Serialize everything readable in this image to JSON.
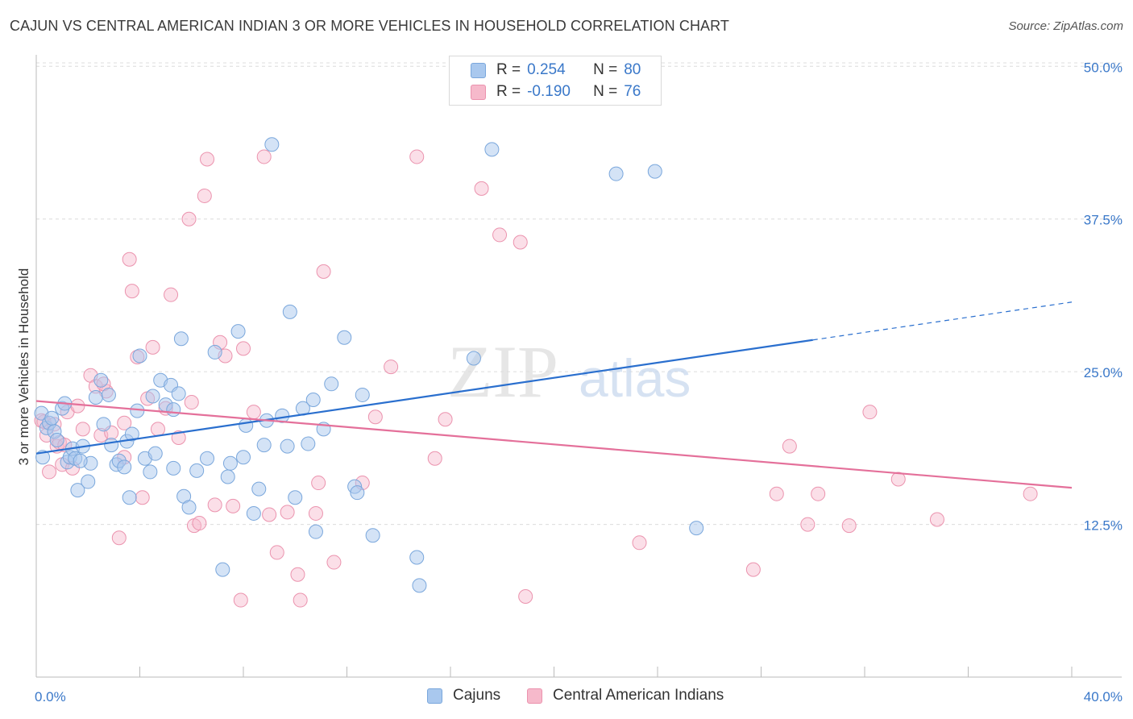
{
  "header": {
    "title": "CAJUN VS CENTRAL AMERICAN INDIAN 3 OR MORE VEHICLES IN HOUSEHOLD CORRELATION CHART",
    "source": "Source: ZipAtlas.com"
  },
  "watermark": {
    "zip": "ZIP",
    "atlas": "atlas"
  },
  "colors": {
    "blue_fill": "#a9c8ee",
    "blue_stroke": "#7aa7dc",
    "blue_line": "#2a6fce",
    "blue_text": "#3a78c9",
    "pink_fill": "#f6b9cb",
    "pink_stroke": "#eb93ae",
    "pink_line": "#e4709a",
    "grid": "#dcdcdc"
  },
  "legend": {
    "rows": [
      {
        "r_label": "R =",
        "r_value": "0.254",
        "n_label": "N =",
        "n_value": "80"
      },
      {
        "r_label": "R =",
        "r_value": "-0.190",
        "n_label": "N =",
        "n_value": "76"
      }
    ]
  },
  "bottom_legend": {
    "items": [
      "Cajuns",
      "Central American Indians"
    ]
  },
  "chart_data": {
    "type": "scatter",
    "title": "CAJUN VS CENTRAL AMERICAN INDIAN 3 OR MORE VEHICLES IN HOUSEHOLD CORRELATION CHART",
    "xlabel": "",
    "ylabel": "3 or more Vehicles in Household",
    "xlim": [
      0,
      40
    ],
    "ylim": [
      0,
      52
    ],
    "x_tick_labels": [
      "0.0%",
      "40.0%"
    ],
    "y_ticks": [
      12.5,
      25.0,
      37.5,
      50.0
    ],
    "y_tick_labels": [
      "12.5%",
      "25.0%",
      "37.5%",
      "50.0%"
    ],
    "grid": true,
    "legend_position": "top-center",
    "series": [
      {
        "name": "Cajuns",
        "r": 0.254,
        "n": 80,
        "trend": {
          "x0": 0,
          "y0": 18.3,
          "x1": 30,
          "y1": 27.6,
          "dash_to_x": 40,
          "dash_to_y": 30.7
        },
        "points": [
          [
            0.2,
            21.6
          ],
          [
            0.4,
            20.4
          ],
          [
            0.5,
            20.8
          ],
          [
            0.6,
            21.2
          ],
          [
            0.7,
            20.1
          ],
          [
            0.8,
            19.4
          ],
          [
            1.0,
            22.0
          ],
          [
            1.1,
            22.4
          ],
          [
            1.2,
            17.6
          ],
          [
            1.3,
            18.0
          ],
          [
            1.4,
            18.7
          ],
          [
            1.5,
            17.9
          ],
          [
            1.6,
            15.3
          ],
          [
            1.8,
            18.9
          ],
          [
            2.0,
            16.0
          ],
          [
            2.1,
            17.5
          ],
          [
            2.3,
            22.9
          ],
          [
            2.5,
            24.3
          ],
          [
            2.6,
            20.7
          ],
          [
            2.8,
            23.1
          ],
          [
            2.9,
            19.0
          ],
          [
            3.1,
            17.4
          ],
          [
            3.2,
            17.7
          ],
          [
            3.4,
            17.2
          ],
          [
            3.5,
            19.3
          ],
          [
            3.6,
            14.7
          ],
          [
            3.7,
            19.9
          ],
          [
            3.9,
            21.8
          ],
          [
            4.0,
            26.3
          ],
          [
            4.2,
            17.9
          ],
          [
            4.4,
            16.8
          ],
          [
            4.5,
            23.0
          ],
          [
            4.6,
            18.3
          ],
          [
            4.8,
            24.3
          ],
          [
            5.0,
            22.3
          ],
          [
            5.2,
            23.9
          ],
          [
            5.3,
            17.1
          ],
          [
            5.5,
            23.2
          ],
          [
            5.6,
            27.7
          ],
          [
            5.7,
            14.8
          ],
          [
            5.9,
            13.9
          ],
          [
            6.2,
            16.9
          ],
          [
            6.6,
            17.9
          ],
          [
            6.9,
            26.6
          ],
          [
            7.2,
            8.8
          ],
          [
            7.4,
            16.4
          ],
          [
            7.5,
            17.5
          ],
          [
            7.8,
            28.3
          ],
          [
            8.0,
            18.0
          ],
          [
            8.1,
            20.6
          ],
          [
            8.4,
            13.4
          ],
          [
            8.6,
            15.4
          ],
          [
            8.8,
            19.0
          ],
          [
            8.9,
            21.0
          ],
          [
            9.1,
            43.6
          ],
          [
            9.5,
            21.4
          ],
          [
            9.7,
            18.9
          ],
          [
            9.8,
            29.9
          ],
          [
            10.0,
            14.7
          ],
          [
            10.3,
            22.0
          ],
          [
            10.5,
            19.1
          ],
          [
            10.7,
            22.7
          ],
          [
            10.8,
            11.9
          ],
          [
            11.1,
            20.3
          ],
          [
            11.4,
            24.0
          ],
          [
            11.9,
            27.8
          ],
          [
            12.3,
            15.6
          ],
          [
            12.4,
            15.1
          ],
          [
            12.6,
            23.1
          ],
          [
            13.0,
            11.6
          ],
          [
            14.7,
            9.8
          ],
          [
            14.8,
            7.5
          ],
          [
            16.9,
            26.1
          ],
          [
            17.6,
            43.2
          ],
          [
            22.4,
            41.2
          ],
          [
            23.9,
            41.4
          ],
          [
            25.5,
            12.2
          ],
          [
            0.25,
            18.0
          ],
          [
            1.7,
            17.7
          ],
          [
            5.3,
            21.9
          ]
        ]
      },
      {
        "name": "Central American Indians",
        "r": -0.19,
        "n": 76,
        "trend": {
          "x0": 0,
          "y0": 22.6,
          "x1": 40,
          "y1": 15.5
        },
        "points": [
          [
            0.3,
            20.9
          ],
          [
            0.4,
            19.8
          ],
          [
            0.5,
            16.8
          ],
          [
            0.7,
            20.7
          ],
          [
            0.8,
            18.9
          ],
          [
            0.9,
            19.2
          ],
          [
            1.0,
            17.4
          ],
          [
            1.2,
            21.7
          ],
          [
            1.4,
            17.1
          ],
          [
            1.6,
            22.2
          ],
          [
            1.8,
            20.3
          ],
          [
            2.1,
            24.7
          ],
          [
            2.3,
            23.8
          ],
          [
            2.5,
            19.8
          ],
          [
            2.7,
            23.4
          ],
          [
            2.9,
            20.0
          ],
          [
            3.2,
            11.4
          ],
          [
            3.4,
            20.8
          ],
          [
            3.6,
            34.2
          ],
          [
            3.7,
            31.6
          ],
          [
            3.9,
            26.2
          ],
          [
            4.1,
            14.7
          ],
          [
            4.3,
            22.8
          ],
          [
            4.5,
            27.0
          ],
          [
            4.7,
            20.3
          ],
          [
            5.0,
            22.0
          ],
          [
            5.2,
            31.3
          ],
          [
            5.5,
            19.6
          ],
          [
            5.9,
            37.5
          ],
          [
            6.1,
            12.4
          ],
          [
            6.3,
            12.6
          ],
          [
            6.5,
            39.4
          ],
          [
            6.6,
            42.4
          ],
          [
            6.9,
            14.1
          ],
          [
            7.1,
            27.4
          ],
          [
            7.3,
            26.3
          ],
          [
            7.6,
            14.0
          ],
          [
            7.9,
            6.3
          ],
          [
            8.0,
            26.9
          ],
          [
            8.4,
            21.7
          ],
          [
            8.8,
            42.6
          ],
          [
            9.0,
            13.3
          ],
          [
            9.3,
            10.2
          ],
          [
            9.7,
            13.5
          ],
          [
            10.1,
            8.4
          ],
          [
            10.2,
            6.3
          ],
          [
            10.8,
            13.4
          ],
          [
            10.9,
            15.9
          ],
          [
            11.1,
            33.2
          ],
          [
            11.5,
            9.4
          ],
          [
            12.6,
            15.9
          ],
          [
            13.1,
            21.3
          ],
          [
            13.7,
            25.4
          ],
          [
            14.7,
            42.6
          ],
          [
            15.4,
            17.9
          ],
          [
            15.8,
            21.1
          ],
          [
            17.2,
            40.0
          ],
          [
            17.9,
            36.2
          ],
          [
            18.7,
            35.6
          ],
          [
            18.9,
            6.6
          ],
          [
            23.3,
            11.0
          ],
          [
            27.7,
            8.8
          ],
          [
            28.6,
            15.0
          ],
          [
            29.1,
            18.9
          ],
          [
            29.8,
            12.5
          ],
          [
            30.2,
            15.0
          ],
          [
            31.4,
            12.4
          ],
          [
            32.2,
            21.7
          ],
          [
            33.3,
            16.2
          ],
          [
            34.8,
            12.9
          ],
          [
            38.4,
            15.0
          ],
          [
            0.2,
            21.0
          ],
          [
            1.1,
            19.0
          ],
          [
            2.6,
            24.0
          ],
          [
            3.4,
            18.0
          ],
          [
            6.0,
            22.5
          ]
        ]
      }
    ]
  }
}
